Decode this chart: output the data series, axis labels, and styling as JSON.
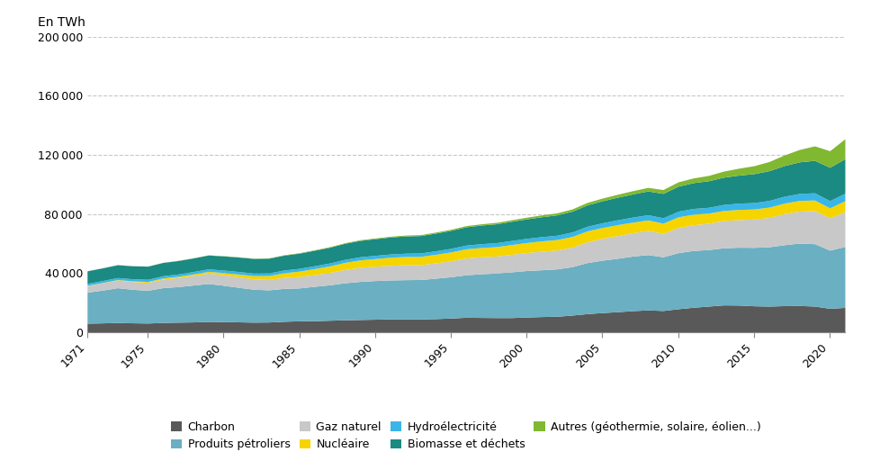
{
  "years": [
    1971,
    1972,
    1973,
    1974,
    1975,
    1976,
    1977,
    1978,
    1979,
    1980,
    1981,
    1982,
    1983,
    1984,
    1985,
    1986,
    1987,
    1988,
    1989,
    1990,
    1991,
    1992,
    1993,
    1994,
    1995,
    1996,
    1997,
    1998,
    1999,
    2000,
    2001,
    2002,
    2003,
    2004,
    2005,
    2006,
    2007,
    2008,
    2009,
    2010,
    2011,
    2012,
    2013,
    2014,
    2015,
    2016,
    2017,
    2018,
    2019,
    2020,
    2021
  ],
  "charbon": [
    5900,
    6100,
    6350,
    6150,
    6000,
    6400,
    6600,
    6750,
    7100,
    7000,
    6800,
    6600,
    6700,
    7200,
    7500,
    7600,
    7900,
    8200,
    8400,
    8600,
    8800,
    8800,
    8800,
    9000,
    9400,
    9900,
    9800,
    9700,
    9700,
    10100,
    10400,
    10600,
    11400,
    12400,
    13100,
    13700,
    14400,
    14900,
    14500,
    15700,
    16700,
    17500,
    18300,
    18200,
    17700,
    17500,
    17800,
    17900,
    17500,
    16000,
    16600
  ],
  "produits_petroliers": [
    21000,
    22200,
    23600,
    22700,
    22200,
    23600,
    24100,
    25000,
    25700,
    24600,
    23400,
    22300,
    21800,
    22300,
    22300,
    23300,
    24000,
    25100,
    25800,
    26200,
    26400,
    26600,
    26700,
    27400,
    28000,
    28800,
    29600,
    30200,
    31000,
    31500,
    31700,
    32100,
    32800,
    34600,
    35500,
    36200,
    37000,
    37500,
    36400,
    38000,
    38500,
    38300,
    38700,
    39200,
    39600,
    40200,
    41300,
    42300,
    42300,
    39400,
    41300
  ],
  "gaz_naturel": [
    4500,
    4900,
    5200,
    5300,
    5400,
    5800,
    6100,
    6500,
    7000,
    7100,
    7100,
    7000,
    7000,
    7500,
    7700,
    7900,
    8400,
    9000,
    9500,
    9700,
    9900,
    10100,
    10100,
    10400,
    10800,
    11400,
    11500,
    11500,
    11900,
    12200,
    12600,
    12800,
    13300,
    14100,
    14800,
    15400,
    15800,
    16400,
    15900,
    17100,
    17400,
    17900,
    18500,
    18700,
    19200,
    19900,
    21100,
    21700,
    22400,
    22000,
    23500
  ],
  "nucleaire": [
    186,
    230,
    310,
    430,
    600,
    750,
    900,
    1050,
    1250,
    1500,
    1900,
    2250,
    2700,
    3100,
    3700,
    4100,
    4400,
    4800,
    5100,
    5200,
    5500,
    5600,
    5600,
    5800,
    6000,
    6200,
    6300,
    6400,
    6600,
    6800,
    7000,
    7100,
    7200,
    7400,
    7400,
    7400,
    7200,
    7100,
    6900,
    7200,
    7200,
    6800,
    6800,
    6900,
    6800,
    7000,
    7100,
    7200,
    7200,
    6700,
    7500
  ],
  "hydroelectricite": [
    1300,
    1350,
    1380,
    1420,
    1450,
    1530,
    1560,
    1620,
    1660,
    1700,
    1720,
    1740,
    1780,
    1850,
    1880,
    1950,
    2000,
    2050,
    2120,
    2180,
    2200,
    2250,
    2300,
    2380,
    2450,
    2530,
    2600,
    2680,
    2760,
    2820,
    2870,
    2930,
    3030,
    3130,
    3200,
    3310,
    3430,
    3550,
    3680,
    3820,
    3880,
    3960,
    4100,
    4280,
    4360,
    4500,
    4650,
    4770,
    4900,
    4900,
    5100
  ],
  "biomasse_dechets": [
    8500,
    8600,
    8700,
    8800,
    8900,
    9000,
    9100,
    9200,
    9400,
    9600,
    9800,
    9900,
    10000,
    10100,
    10300,
    10500,
    10700,
    10900,
    11100,
    11300,
    11500,
    11700,
    11800,
    12000,
    12200,
    12400,
    12600,
    12800,
    13000,
    13200,
    13500,
    13800,
    14100,
    14500,
    14900,
    15300,
    15700,
    16100,
    16500,
    17000,
    17500,
    18000,
    18500,
    19000,
    19600,
    20200,
    20800,
    21400,
    22000,
    22600,
    23400
  ],
  "autres": [
    50,
    60,
    70,
    80,
    90,
    100,
    110,
    120,
    130,
    150,
    170,
    200,
    230,
    260,
    290,
    320,
    360,
    400,
    440,
    490,
    540,
    580,
    630,
    680,
    740,
    800,
    870,
    950,
    1050,
    1150,
    1250,
    1380,
    1520,
    1670,
    1820,
    2000,
    2200,
    2400,
    2600,
    2900,
    3200,
    3600,
    4100,
    4700,
    5400,
    6200,
    7200,
    8400,
    9800,
    11200,
    13500
  ],
  "colors": {
    "charbon": "#595959",
    "produits_petroliers": "#6aafc2",
    "gaz_naturel": "#c8c8c8",
    "nucleaire": "#f5d400",
    "hydroelectricite": "#3ab5e8",
    "biomasse_dechets": "#1a8a82",
    "autres": "#80b832"
  },
  "labels": {
    "charbon": "Charbon",
    "produits_petroliers": "Produits pétroliers",
    "gaz_naturel": "Gaz naturel",
    "nucleaire": "Nucléaire",
    "hydroelectricite": "Hydroélectricité",
    "biomasse_dechets": "Biomasse et déchets",
    "autres": "Autres (géothermie, solaire, éolien...)"
  },
  "ylabel": "En TWh",
  "ylim": [
    0,
    200000
  ],
  "yticks": [
    0,
    40000,
    80000,
    120000,
    160000,
    200000
  ],
  "xticks": [
    1971,
    1975,
    1980,
    1985,
    1990,
    1995,
    2000,
    2005,
    2010,
    2015,
    2020
  ],
  "background_color": "#ffffff",
  "grid_color": "#c8c8c8"
}
